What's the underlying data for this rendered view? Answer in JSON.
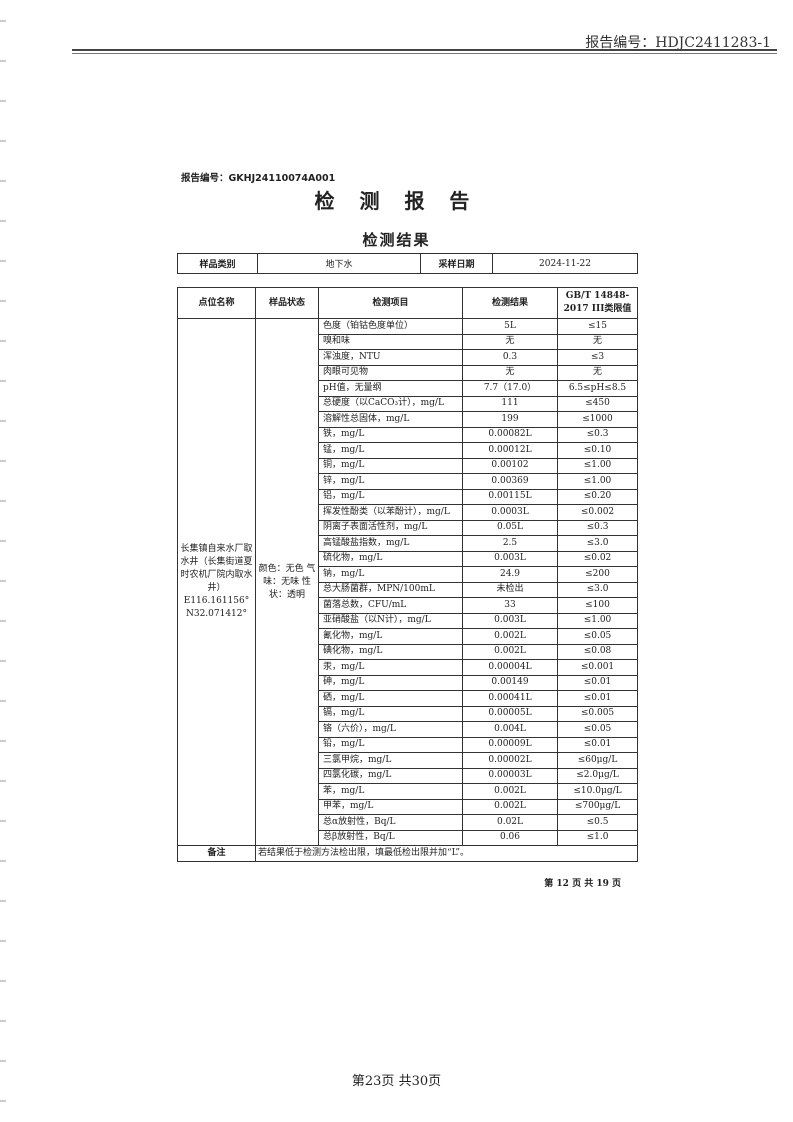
{
  "header": {
    "report_no": "报告编号：HDJC2411283-1"
  },
  "doc": {
    "report_no": "报告编号：GKHJ24110074A001",
    "title": "检 测 报 告",
    "subtitle": "检测结果",
    "sample_info": {
      "type_label": "样品类别",
      "type_value": "地下水",
      "date_label": "采样日期",
      "date_value": "2024-11-22"
    },
    "table": {
      "headers": [
        "点位名称",
        "样品状态",
        "检测项目",
        "检测结果",
        "GB/T 14848-2017 III类限值"
      ],
      "location": "长集镇自来水厂取水井（长集街道夏时农机厂院内取水井）E116.161156° N32.071412°",
      "sample_state": "颜色：无色 气味：无味 性状：透明",
      "rows": [
        [
          "色度（铂钴色度单位）",
          "5L",
          "≤15"
        ],
        [
          "嗅和味",
          "无",
          "无"
        ],
        [
          "浑浊度，NTU",
          "0.3",
          "≤3"
        ],
        [
          "肉眼可见物",
          "无",
          "无"
        ],
        [
          "pH值，无量纲",
          "7.7（17.0）",
          "6.5≤pH≤8.5"
        ],
        [
          "总硬度（以CaCO₃计），mg/L",
          "111",
          "≤450"
        ],
        [
          "溶解性总固体，mg/L",
          "199",
          "≤1000"
        ],
        [
          "铁，mg/L",
          "0.00082L",
          "≤0.3"
        ],
        [
          "锰，mg/L",
          "0.00012L",
          "≤0.10"
        ],
        [
          "铜，mg/L",
          "0.00102",
          "≤1.00"
        ],
        [
          "锌，mg/L",
          "0.00369",
          "≤1.00"
        ],
        [
          "铝，mg/L",
          "0.00115L",
          "≤0.20"
        ],
        [
          "挥发性酚类（以苯酚计），mg/L",
          "0.0003L",
          "≤0.002"
        ],
        [
          "阴离子表面活性剂，mg/L",
          "0.05L",
          "≤0.3"
        ],
        [
          "高锰酸盐指数，mg/L",
          "2.5",
          "≤3.0"
        ],
        [
          "硫化物，mg/L",
          "0.003L",
          "≤0.02"
        ],
        [
          "钠，mg/L",
          "24.9",
          "≤200"
        ],
        [
          "总大肠菌群，MPN/100mL",
          "未检出",
          "≤3.0"
        ],
        [
          "菌落总数，CFU/mL",
          "33",
          "≤100"
        ],
        [
          "亚硝酸盐（以N计），mg/L",
          "0.003L",
          "≤1.00"
        ],
        [
          "氰化物，mg/L",
          "0.002L",
          "≤0.05"
        ],
        [
          "碘化物，mg/L",
          "0.002L",
          "≤0.08"
        ],
        [
          "汞，mg/L",
          "0.00004L",
          "≤0.001"
        ],
        [
          "砷，mg/L",
          "0.00149",
          "≤0.01"
        ],
        [
          "硒，mg/L",
          "0.00041L",
          "≤0.01"
        ],
        [
          "镉，mg/L",
          "0.00005L",
          "≤0.005"
        ],
        [
          "铬（六价），mg/L",
          "0.004L",
          "≤0.05"
        ],
        [
          "铅，mg/L",
          "0.00009L",
          "≤0.01"
        ],
        [
          "三氯甲烷，mg/L",
          "0.00002L",
          "≤60μg/L"
        ],
        [
          "四氯化碳，mg/L",
          "0.00003L",
          "≤2.0μg/L"
        ],
        [
          "苯，mg/L",
          "0.002L",
          "≤10.0μg/L"
        ],
        [
          "甲苯，mg/L",
          "0.002L",
          "≤700μg/L"
        ],
        [
          "总α放射性，Bq/L",
          "0.02L",
          "≤0.5"
        ],
        [
          "总β放射性，Bq/L",
          "0.06",
          "≤1.0"
        ]
      ],
      "note_label": "备注",
      "note": "若结果低于检测方法检出限，填最低检出限并加“L”。"
    },
    "inner_page": "第 12 页 共 19 页"
  },
  "footer": {
    "page": "第23页  共30页"
  }
}
